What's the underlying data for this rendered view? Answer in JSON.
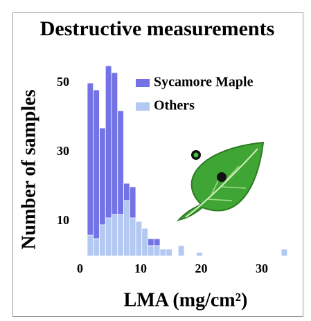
{
  "chart_data": {
    "type": "histogram",
    "title": "Destructive measurements",
    "x_label": "LMA (mg/cm²)",
    "y_label": "Number of samples",
    "bins": [
      1.2,
      2.2,
      3.2,
      4.2,
      5.2,
      6.2,
      7.2,
      8.2,
      9.2,
      10.2,
      11.2,
      12.2,
      13.2,
      14.2,
      15.2,
      16.2,
      17.2,
      18.2,
      19.2,
      20.2,
      21.2,
      22.2,
      23.2,
      24.2,
      25.2,
      26.2,
      27.2,
      28.2,
      29.2,
      30.2,
      31.2,
      32.2,
      33.2,
      34.2
    ],
    "series": [
      {
        "name": "Sycamore Maple",
        "color": "#7373e6",
        "values": [
          44,
          43,
          28,
          44,
          41,
          30,
          5,
          9,
          0,
          0,
          2,
          2,
          0,
          0,
          0,
          0,
          0,
          0,
          0,
          0,
          0,
          0,
          0,
          0,
          0,
          0,
          0,
          0,
          0,
          0,
          0,
          0,
          0
        ]
      },
      {
        "name": "Others",
        "color": "#b3c9f2",
        "values": [
          6,
          5,
          9,
          11,
          12,
          12,
          16,
          11,
          10,
          8,
          3,
          3,
          2,
          2,
          0,
          3,
          0,
          0,
          1,
          0,
          0,
          0,
          0,
          0,
          0,
          0,
          0,
          0,
          0,
          0,
          0,
          0,
          2
        ]
      }
    ],
    "stacked": true,
    "xlim": [
      -1,
      36
    ],
    "ylim": [
      0,
      57
    ],
    "xticks": [
      0,
      10,
      20,
      30
    ],
    "yticks": [
      10,
      30,
      50
    ],
    "legend": "upper right"
  }
}
